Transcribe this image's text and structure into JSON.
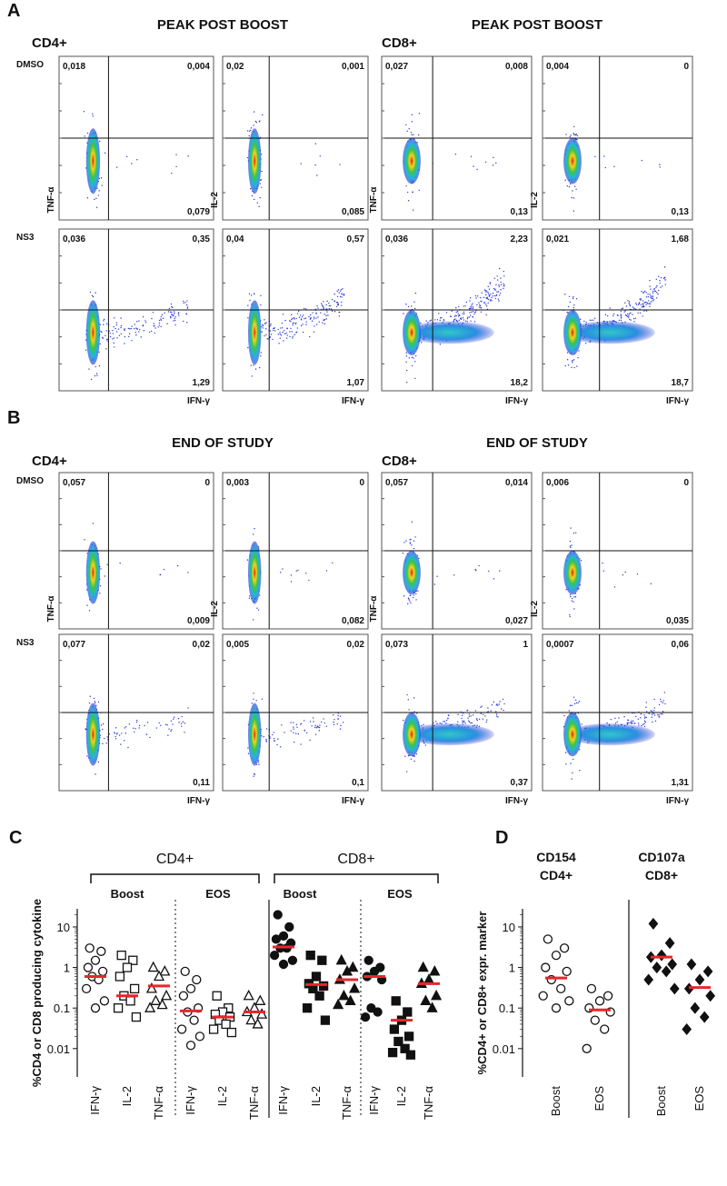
{
  "flow": [
    {
      "label": "A",
      "sections": [
        {
          "cell": "CD4+",
          "title": "PEAK POST BOOST",
          "y_labels": [
            "TNF-α",
            "IL-2"
          ],
          "x_labels": [
            "IFN-γ",
            "IFN-γ"
          ],
          "row_labels": [
            "DMSO",
            "NS3"
          ],
          "plots": [
            [
              {
                "ul": "0,018",
                "ur": "0,004",
                "lr": "0,079"
              },
              {
                "ul": "0,02",
                "ur": "0,001",
                "lr": "0,085"
              }
            ],
            [
              {
                "ul": "0,036",
                "ur": "0,35",
                "lr": "1,29"
              },
              {
                "ul": "0,04",
                "ur": "0,57",
                "lr": "1,07"
              }
            ]
          ]
        },
        {
          "cell": "CD8+",
          "title": "PEAK POST BOOST",
          "y_labels": [
            "TNF-α",
            "IL-2"
          ],
          "x_labels": [
            "IFN-γ",
            "IFN-γ"
          ],
          "plots": [
            [
              {
                "ul": "0,027",
                "ur": "0,008",
                "lr": "0,13"
              },
              {
                "ul": "0,004",
                "ur": "0",
                "lr": "0,13"
              }
            ],
            [
              {
                "ul": "0,036",
                "ur": "2,23",
                "lr": "18,2"
              },
              {
                "ul": "0,021",
                "ur": "1,68",
                "lr": "18,7"
              }
            ]
          ]
        }
      ]
    },
    {
      "label": "B",
      "sections": [
        {
          "cell": "CD4+",
          "title": "END OF STUDY",
          "y_labels": [
            "TNF-α",
            "IL-2"
          ],
          "x_labels": [
            "IFN-γ",
            "IFN-γ"
          ],
          "row_labels": [
            "DMSO",
            "NS3"
          ],
          "plots": [
            [
              {
                "ul": "0,057",
                "ur": "0",
                "lr": "0,009"
              },
              {
                "ul": "0,003",
                "ur": "0",
                "lr": "0,082"
              }
            ],
            [
              {
                "ul": "0,077",
                "ur": "0,02",
                "lr": "0,11"
              },
              {
                "ul": "0,005",
                "ur": "0,02",
                "lr": "0,1"
              }
            ]
          ]
        },
        {
          "cell": "CD8+",
          "title": "END OF STUDY",
          "y_labels": [
            "TNF-α",
            "IL-2"
          ],
          "x_labels": [
            "IFN-γ",
            "IFN-γ"
          ],
          "plots": [
            [
              {
                "ul": "0,057",
                "ur": "0,014",
                "lr": "0,027"
              },
              {
                "ul": "0,006",
                "ur": "0",
                "lr": "0,035"
              }
            ],
            [
              {
                "ul": "0,073",
                "ur": "1",
                "lr": "0,37"
              },
              {
                "ul": "0,0007",
                "ur": "0,06",
                "lr": "1,31"
              }
            ]
          ]
        }
      ]
    }
  ],
  "chart_data": [
    {
      "type": "strip",
      "panel_label": "C",
      "y_label": "%CD4 or CD8 producing cytokine",
      "log_y": true,
      "ylim": [
        0.002,
        28
      ],
      "yticks": [
        0.01,
        0.1,
        1,
        10
      ],
      "groups": [
        {
          "label": "CD4+",
          "subgroups": [
            "Boost",
            "EOS"
          ]
        },
        {
          "label": "CD8+",
          "subgroups": [
            "Boost",
            "EOS"
          ]
        }
      ],
      "categories": [
        "IFN-γ",
        "IL-2",
        "TNF-α",
        "IFN-γ",
        "IL-2",
        "TNF-α",
        "IFN-γ",
        "IL-2",
        "TNF-α",
        "IFN-γ",
        "IL-2",
        "TNF-α"
      ],
      "markers": [
        "open-circle",
        "open-square",
        "open-triangle",
        "open-circle",
        "open-square",
        "open-triangle",
        "circle",
        "square",
        "triangle",
        "circle",
        "square",
        "triangle"
      ],
      "median_color": "#e8262b",
      "values": [
        [
          3,
          2.5,
          1.5,
          1,
          0.8,
          0.6,
          0.5,
          0.3,
          0.15,
          0.1
        ],
        [
          2,
          1.5,
          1,
          0.6,
          0.3,
          0.2,
          0.15,
          0.1,
          0.06
        ],
        [
          1,
          0.8,
          0.6,
          0.3,
          0.2,
          0.15,
          0.12,
          0.1
        ],
        [
          0.8,
          0.5,
          0.3,
          0.2,
          0.1,
          0.08,
          0.05,
          0.03,
          0.02,
          0.012
        ],
        [
          0.2,
          0.1,
          0.08,
          0.07,
          0.06,
          0.05,
          0.04,
          0.03,
          0.025
        ],
        [
          0.2,
          0.15,
          0.1,
          0.08,
          0.07,
          0.05,
          0.04
        ],
        [
          20,
          10,
          6,
          5,
          4,
          3,
          3,
          2,
          1.5,
          1.2
        ],
        [
          2,
          1.5,
          0.6,
          0.4,
          0.35,
          0.3,
          0.2,
          0.1,
          0.05
        ],
        [
          1.5,
          1,
          0.8,
          0.5,
          0.3,
          0.2,
          0.15,
          0.12
        ],
        [
          1.5,
          1,
          0.8,
          0.6,
          0.5,
          0.1,
          0.08,
          0.06
        ],
        [
          0.15,
          0.08,
          0.05,
          0.03,
          0.02,
          0.015,
          0.01,
          0.008,
          0.007
        ],
        [
          1,
          0.8,
          0.5,
          0.4,
          0.2,
          0.15,
          0.1
        ]
      ],
      "medians": [
        0.6,
        0.2,
        0.35,
        0.085,
        0.06,
        0.08,
        3.2,
        0.38,
        0.5,
        0.6,
        0.05,
        0.4
      ]
    },
    {
      "type": "strip",
      "panel_label": "D",
      "y_label": "%CD4+ or CD8+ expr. marker",
      "log_y": true,
      "ylim": [
        0.002,
        28
      ],
      "yticks": [
        0.01,
        0.1,
        1,
        10
      ],
      "groups": [
        {
          "label_lines": [
            "CD154",
            "CD4+"
          ]
        },
        {
          "label_lines": [
            "CD107a",
            "CD8+"
          ]
        }
      ],
      "categories": [
        "Boost",
        "EOS",
        "Boost",
        "EOS"
      ],
      "markers": [
        "open-circle",
        "open-circle",
        "diamond",
        "diamond"
      ],
      "median_color": "#e8262b",
      "values": [
        [
          5,
          3,
          2,
          1,
          0.8,
          0.5,
          0.3,
          0.2,
          0.15,
          0.1
        ],
        [
          0.3,
          0.2,
          0.15,
          0.1,
          0.08,
          0.05,
          0.03,
          0.01
        ],
        [
          12,
          4,
          2,
          1.8,
          1.2,
          1,
          0.8,
          0.5,
          0.3
        ],
        [
          1.2,
          0.8,
          0.5,
          0.3,
          0.2,
          0.1,
          0.06,
          0.03
        ]
      ],
      "medians": [
        0.55,
        0.09,
        1.8,
        0.32
      ]
    }
  ]
}
